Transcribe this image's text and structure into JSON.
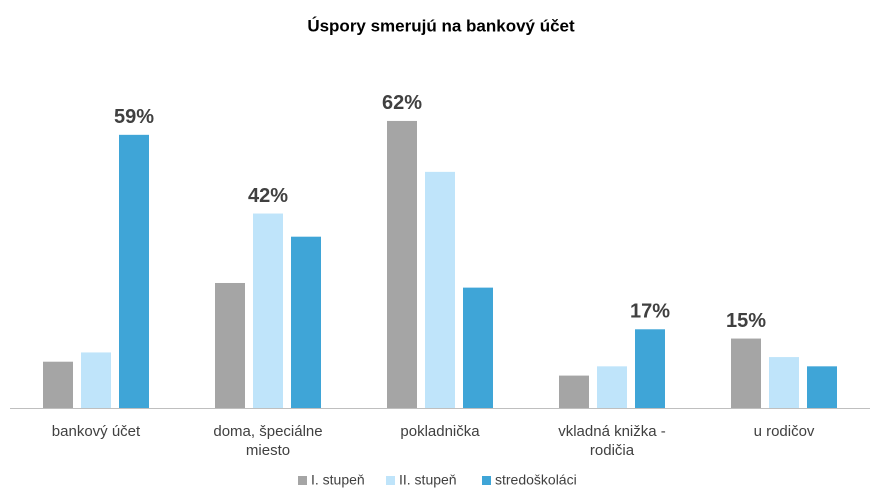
{
  "chart_data": {
    "type": "bar",
    "title": "Úspory smerujú na bankový účet",
    "categories": [
      "bankový účet",
      "doma, špeciálne miesto",
      "pokladnička",
      "vkladná knižka - rodičia",
      "u rodičov"
    ],
    "series": [
      {
        "name": "I. stupeň",
        "color": "#a5a5a5",
        "values": [
          10,
          27,
          62,
          7,
          15
        ],
        "value_labels": [
          null,
          null,
          "62%",
          null,
          "15%"
        ]
      },
      {
        "name": "II. stupeň",
        "color": "#bfe4fa",
        "values": [
          12,
          42,
          51,
          9,
          11
        ],
        "value_labels": [
          null,
          "42%",
          null,
          null,
          null
        ]
      },
      {
        "name": "stredoškoláci",
        "color": "#3fa5d7",
        "values": [
          59,
          37,
          26,
          17,
          9
        ],
        "value_labels": [
          "59%",
          null,
          null,
          "17%",
          null
        ]
      }
    ],
    "legend": "bottom"
  }
}
